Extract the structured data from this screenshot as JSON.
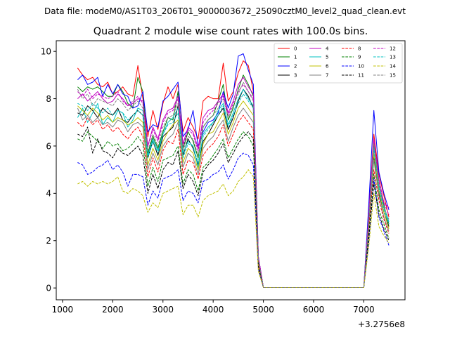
{
  "suptitle": "Data file: modeM0/AS1T03_206T01_9000003672_25090cztM0_level2_quad_clean.evt",
  "chart_data": {
    "type": "line",
    "title": "Quadrant 2 module wise count rates with 100.0s bins.",
    "xlabel": "",
    "ylabel": "",
    "x_offset_label": "+3.2756e8",
    "xlim": [
      875,
      7820
    ],
    "ylim": [
      -0.5,
      10.45
    ],
    "xticks": [
      1000,
      2000,
      3000,
      4000,
      5000,
      6000,
      7000
    ],
    "xtick_labels": [
      "1000",
      "2000",
      "3000",
      "4000",
      "5000",
      "6000",
      "7000"
    ],
    "yticks": [
      0,
      2,
      4,
      6,
      8,
      10
    ],
    "ytick_labels": [
      "0",
      "2",
      "4",
      "6",
      "8",
      "10"
    ],
    "legend_position": "upper right",
    "legend_columns": 4,
    "x": [
      1300,
      1400,
      1500,
      1600,
      1700,
      1800,
      1900,
      2000,
      2100,
      2200,
      2300,
      2400,
      2500,
      2600,
      2700,
      2800,
      2900,
      3000,
      3100,
      3200,
      3300,
      3400,
      3500,
      3600,
      3700,
      3800,
      3900,
      4000,
      4100,
      4200,
      4300,
      4400,
      4500,
      4600,
      4700,
      4800,
      4900,
      5000,
      5100,
      5200,
      5300,
      5400,
      5500,
      5600,
      5700,
      5800,
      5900,
      6000,
      6100,
      6200,
      6300,
      6400,
      6500,
      6600,
      6700,
      6800,
      6900,
      7000,
      7100,
      7200,
      7300,
      7400,
      7500
    ],
    "series": [
      {
        "name": "0",
        "color": "#ff0000",
        "dash": "solid",
        "values": [
          9.3,
          9.0,
          8.8,
          8.9,
          8.6,
          8.5,
          8.7,
          8.2,
          8.3,
          8.5,
          8.2,
          8.1,
          9.4,
          8.0,
          6.4,
          7.5,
          6.7,
          7.8,
          8.5,
          8.0,
          8.6,
          6.6,
          7.2,
          6.8,
          6.3,
          7.9,
          8.1,
          8.0,
          8.0,
          9.5,
          7.9,
          8.3,
          9.1,
          9.6,
          9.4,
          8.3,
          1.3,
          0.02,
          0.02,
          0.02,
          0.02,
          0.02,
          0.02,
          0.02,
          0.02,
          0.02,
          0.02,
          0.02,
          0.02,
          0.02,
          0.02,
          0.02,
          0.02,
          0.02,
          0.02,
          0.02,
          0.02,
          0.02,
          3.3,
          6.5,
          4.8,
          3.9,
          3.0
        ]
      },
      {
        "name": "1",
        "color": "#008000",
        "dash": "solid",
        "values": [
          8.5,
          8.3,
          8.5,
          8.4,
          8.5,
          8.3,
          8.1,
          8.1,
          8.6,
          8.3,
          7.8,
          7.6,
          8.9,
          8.3,
          5.7,
          6.4,
          5.9,
          6.6,
          7.2,
          7.1,
          8.3,
          5.9,
          6.6,
          6.2,
          5.5,
          6.8,
          7.1,
          7.3,
          7.9,
          8.6,
          7.1,
          7.6,
          8.4,
          9.0,
          8.6,
          8.1,
          1.2,
          0.02,
          0.02,
          0.02,
          0.02,
          0.02,
          0.02,
          0.02,
          0.02,
          0.02,
          0.02,
          0.02,
          0.02,
          0.02,
          0.02,
          0.02,
          0.02,
          0.02,
          0.02,
          0.02,
          0.02,
          0.02,
          3.0,
          6.1,
          4.3,
          3.5,
          2.7
        ]
      },
      {
        "name": "2",
        "color": "#0000ff",
        "dash": "solid",
        "values": [
          8.8,
          9.0,
          8.6,
          8.7,
          8.9,
          8.1,
          8.6,
          8.2,
          8.6,
          8.2,
          8.1,
          7.6,
          7.7,
          8.3,
          6.6,
          6.9,
          6.8,
          7.9,
          8.1,
          8.4,
          8.7,
          6.4,
          6.7,
          7.5,
          6.0,
          6.6,
          7.0,
          7.1,
          7.4,
          8.3,
          7.6,
          8.2,
          9.8,
          9.9,
          9.2,
          8.6,
          1.3,
          0.02,
          0.02,
          0.02,
          0.02,
          0.02,
          0.02,
          0.02,
          0.02,
          0.02,
          0.02,
          0.02,
          0.02,
          0.02,
          0.02,
          0.02,
          0.02,
          0.02,
          0.02,
          0.02,
          0.02,
          0.02,
          3.6,
          7.5,
          4.9,
          4.0,
          3.3
        ]
      },
      {
        "name": "3",
        "color": "#000000",
        "dash": "solid",
        "values": [
          7.4,
          7.3,
          7.7,
          7.5,
          7.2,
          7.6,
          7.4,
          7.3,
          7.6,
          7.1,
          7.0,
          7.3,
          7.5,
          7.3,
          5.5,
          6.2,
          5.6,
          6.4,
          6.6,
          6.8,
          7.7,
          5.6,
          6.3,
          5.9,
          5.2,
          6.2,
          6.5,
          6.9,
          7.3,
          7.6,
          6.7,
          7.2,
          7.9,
          8.4,
          8.1,
          7.6,
          1.2,
          0.02,
          0.02,
          0.02,
          0.02,
          0.02,
          0.02,
          0.02,
          0.02,
          0.02,
          0.02,
          0.02,
          0.02,
          0.02,
          0.02,
          0.02,
          0.02,
          0.02,
          0.02,
          0.02,
          0.02,
          0.02,
          2.9,
          5.5,
          4.0,
          3.2,
          2.6
        ]
      },
      {
        "name": "4",
        "color": "#c000c0",
        "dash": "solid",
        "values": [
          8.0,
          8.2,
          7.9,
          8.1,
          8.3,
          8.0,
          7.8,
          7.9,
          8.2,
          8.0,
          7.7,
          7.8,
          8.0,
          7.9,
          6.0,
          6.8,
          6.3,
          7.1,
          7.5,
          7.6,
          8.1,
          6.1,
          6.8,
          6.6,
          5.9,
          7.2,
          7.5,
          7.6,
          7.9,
          8.2,
          7.4,
          7.9,
          8.6,
          8.9,
          8.5,
          8.2,
          1.3,
          0.02,
          0.02,
          0.02,
          0.02,
          0.02,
          0.02,
          0.02,
          0.02,
          0.02,
          0.02,
          0.02,
          0.02,
          0.02,
          0.02,
          0.02,
          0.02,
          0.02,
          0.02,
          0.02,
          0.02,
          0.02,
          3.2,
          6.3,
          4.6,
          3.6,
          3.4
        ]
      },
      {
        "name": "5",
        "color": "#00c0c0",
        "dash": "solid",
        "values": [
          7.2,
          7.6,
          7.0,
          7.4,
          7.8,
          6.9,
          7.2,
          7.0,
          7.5,
          7.4,
          6.8,
          7.1,
          7.6,
          7.5,
          5.6,
          6.3,
          5.8,
          6.5,
          7.0,
          7.2,
          7.6,
          5.7,
          6.2,
          6.0,
          5.1,
          6.5,
          6.8,
          7.0,
          7.5,
          7.8,
          6.9,
          7.4,
          8.0,
          8.4,
          8.0,
          7.7,
          1.2,
          0.02,
          0.02,
          0.02,
          0.02,
          0.02,
          0.02,
          0.02,
          0.02,
          0.02,
          0.02,
          0.02,
          0.02,
          0.02,
          0.02,
          0.02,
          0.02,
          0.02,
          0.02,
          0.02,
          0.02,
          0.02,
          3.0,
          6.0,
          4.3,
          3.4,
          2.8
        ]
      },
      {
        "name": "6",
        "color": "#c0c000",
        "dash": "solid",
        "values": [
          7.7,
          7.5,
          7.3,
          7.6,
          7.4,
          7.1,
          7.3,
          7.0,
          7.2,
          7.1,
          6.9,
          7.0,
          7.2,
          7.0,
          5.2,
          5.9,
          5.4,
          6.2,
          6.6,
          6.9,
          7.1,
          5.3,
          5.9,
          5.7,
          5.0,
          6.1,
          6.5,
          6.6,
          7.0,
          7.4,
          6.5,
          7.0,
          7.6,
          7.9,
          7.6,
          7.3,
          1.1,
          0.02,
          0.02,
          0.02,
          0.02,
          0.02,
          0.02,
          0.02,
          0.02,
          0.02,
          0.02,
          0.02,
          0.02,
          0.02,
          0.02,
          0.02,
          0.02,
          0.02,
          0.02,
          0.02,
          0.02,
          0.02,
          2.8,
          5.7,
          4.1,
          3.2,
          2.5
        ]
      },
      {
        "name": "7",
        "color": "#808080",
        "dash": "solid",
        "values": [
          7.6,
          7.1,
          7.3,
          7.0,
          7.2,
          6.9,
          7.0,
          6.8,
          7.1,
          7.0,
          6.6,
          6.9,
          7.0,
          6.8,
          5.0,
          5.7,
          5.2,
          6.0,
          6.3,
          6.5,
          7.0,
          5.1,
          5.7,
          5.5,
          4.8,
          5.9,
          6.2,
          6.4,
          6.8,
          7.1,
          6.2,
          6.8,
          7.3,
          7.6,
          7.3,
          7.0,
          1.1,
          0.02,
          0.02,
          0.02,
          0.02,
          0.02,
          0.02,
          0.02,
          0.02,
          0.02,
          0.02,
          0.02,
          0.02,
          0.02,
          0.02,
          0.02,
          0.02,
          0.02,
          0.02,
          0.02,
          0.02,
          0.02,
          2.7,
          5.4,
          3.9,
          3.0,
          2.4
        ]
      },
      {
        "name": "8",
        "color": "#ff0000",
        "dash": "dashed",
        "values": [
          7.0,
          6.8,
          7.2,
          6.9,
          7.1,
          6.7,
          6.9,
          6.6,
          6.8,
          6.5,
          6.3,
          6.6,
          6.8,
          6.4,
          4.7,
          5.5,
          4.9,
          5.8,
          6.2,
          6.1,
          6.7,
          4.8,
          5.4,
          5.3,
          4.6,
          5.6,
          5.9,
          6.1,
          6.4,
          6.9,
          6.0,
          6.5,
          7.0,
          7.3,
          7.0,
          6.7,
          1.0,
          0.02,
          0.02,
          0.02,
          0.02,
          0.02,
          0.02,
          0.02,
          0.02,
          0.02,
          0.02,
          0.02,
          0.02,
          0.02,
          0.02,
          0.02,
          0.02,
          0.02,
          0.02,
          0.02,
          0.02,
          0.02,
          2.6,
          5.0,
          3.7,
          2.9,
          2.3
        ]
      },
      {
        "name": "9",
        "color": "#008000",
        "dash": "dashed",
        "values": [
          6.3,
          6.2,
          6.6,
          6.4,
          6.2,
          5.9,
          6.2,
          6.0,
          6.1,
          5.8,
          5.9,
          6.1,
          6.4,
          6.1,
          4.3,
          5.1,
          4.5,
          5.4,
          5.5,
          5.6,
          6.0,
          4.4,
          5.0,
          4.8,
          4.1,
          5.1,
          5.3,
          5.6,
          5.9,
          6.3,
          5.5,
          5.9,
          6.3,
          6.6,
          6.4,
          6.0,
          0.9,
          0.02,
          0.02,
          0.02,
          0.02,
          0.02,
          0.02,
          0.02,
          0.02,
          0.02,
          0.02,
          0.02,
          0.02,
          0.02,
          0.02,
          0.02,
          0.02,
          0.02,
          0.02,
          0.02,
          0.02,
          0.02,
          2.3,
          4.8,
          3.3,
          2.7,
          2.1
        ]
      },
      {
        "name": "10",
        "color": "#0000ff",
        "dash": "dashed",
        "values": [
          5.3,
          5.2,
          4.8,
          4.9,
          5.1,
          5.2,
          5.4,
          5.0,
          5.2,
          4.9,
          4.3,
          4.8,
          4.8,
          4.7,
          3.5,
          4.1,
          3.8,
          4.6,
          4.7,
          4.8,
          5.0,
          3.7,
          4.1,
          4.0,
          3.6,
          4.5,
          4.6,
          4.8,
          4.9,
          5.2,
          4.6,
          5.0,
          5.5,
          5.7,
          5.6,
          5.2,
          0.8,
          0.02,
          0.02,
          0.02,
          0.02,
          0.02,
          0.02,
          0.02,
          0.02,
          0.02,
          0.02,
          0.02,
          0.02,
          0.02,
          0.02,
          0.02,
          0.02,
          0.02,
          0.02,
          0.02,
          0.02,
          0.02,
          2.0,
          4.6,
          3.0,
          2.4,
          1.8
        ]
      },
      {
        "name": "11",
        "color": "#000000",
        "dash": "dashed",
        "values": [
          6.5,
          6.4,
          6.8,
          5.7,
          6.3,
          5.8,
          5.7,
          5.5,
          5.9,
          5.7,
          5.6,
          5.8,
          6.0,
          5.6,
          4.0,
          4.8,
          4.2,
          5.0,
          5.3,
          5.2,
          5.8,
          4.2,
          4.8,
          4.5,
          3.9,
          4.9,
          5.2,
          5.4,
          5.7,
          6.1,
          5.3,
          5.7,
          6.1,
          6.4,
          6.6,
          6.3,
          0.9,
          0.02,
          0.02,
          0.02,
          0.02,
          0.02,
          0.02,
          0.02,
          0.02,
          0.02,
          0.02,
          0.02,
          0.02,
          0.02,
          0.02,
          0.02,
          0.02,
          0.02,
          0.02,
          0.02,
          0.02,
          0.02,
          2.2,
          4.4,
          3.1,
          2.5,
          2.0
        ]
      },
      {
        "name": "12",
        "color": "#c000c0",
        "dash": "dashed",
        "values": [
          8.3,
          8.1,
          8.4,
          8.0,
          8.2,
          8.1,
          8.0,
          8.1,
          8.3,
          7.9,
          7.7,
          7.9,
          8.1,
          7.8,
          6.0,
          6.7,
          6.2,
          7.0,
          7.4,
          7.5,
          8.0,
          6.0,
          6.7,
          6.5,
          5.8,
          7.0,
          7.3,
          7.5,
          7.8,
          8.1,
          7.3,
          7.8,
          8.3,
          8.6,
          8.3,
          8.0,
          1.3,
          0.02,
          0.02,
          0.02,
          0.02,
          0.02,
          0.02,
          0.02,
          0.02,
          0.02,
          0.02,
          0.02,
          0.02,
          0.02,
          0.02,
          0.02,
          0.02,
          0.02,
          0.02,
          0.02,
          0.02,
          0.02,
          3.1,
          6.3,
          4.5,
          3.6,
          3.1
        ]
      },
      {
        "name": "13",
        "color": "#00c0c0",
        "dash": "dashed",
        "values": [
          7.8,
          7.7,
          7.5,
          7.8,
          7.6,
          7.4,
          7.6,
          7.3,
          7.5,
          7.4,
          7.1,
          7.3,
          7.5,
          7.3,
          5.5,
          6.2,
          5.7,
          6.5,
          6.9,
          7.0,
          7.4,
          5.5,
          6.1,
          6.0,
          5.3,
          6.4,
          6.7,
          7.0,
          7.3,
          7.7,
          6.8,
          7.3,
          7.8,
          8.2,
          7.9,
          7.6,
          1.2,
          0.02,
          0.02,
          0.02,
          0.02,
          0.02,
          0.02,
          0.02,
          0.02,
          0.02,
          0.02,
          0.02,
          0.02,
          0.02,
          0.02,
          0.02,
          0.02,
          0.02,
          0.02,
          0.02,
          0.02,
          0.02,
          2.9,
          5.9,
          4.2,
          3.3,
          2.7
        ]
      },
      {
        "name": "14",
        "color": "#c0c000",
        "dash": "dashed",
        "values": [
          4.4,
          4.5,
          4.3,
          4.5,
          4.4,
          4.5,
          4.4,
          4.5,
          4.7,
          4.1,
          4.0,
          4.2,
          4.1,
          3.9,
          3.2,
          3.6,
          3.4,
          4.0,
          4.1,
          4.2,
          4.3,
          3.1,
          3.5,
          3.5,
          3.0,
          3.7,
          3.9,
          4.0,
          4.1,
          4.4,
          3.9,
          4.1,
          4.5,
          4.7,
          5.0,
          4.7,
          0.7,
          0.02,
          0.02,
          0.02,
          0.02,
          0.02,
          0.02,
          0.02,
          0.02,
          0.02,
          0.02,
          0.02,
          0.02,
          0.02,
          0.02,
          0.02,
          0.02,
          0.02,
          0.02,
          0.02,
          0.02,
          0.02,
          1.8,
          4.0,
          2.6,
          2.2,
          1.9
        ]
      },
      {
        "name": "15",
        "color": "#808080",
        "dash": "dashed",
        "values": [
          8.4,
          8.0,
          8.2,
          7.7,
          8.0,
          7.9,
          7.8,
          7.7,
          8.0,
          7.8,
          7.5,
          7.7,
          7.9,
          7.6,
          5.8,
          6.5,
          6.0,
          6.8,
          7.2,
          7.3,
          7.8,
          5.8,
          6.4,
          6.3,
          5.6,
          6.8,
          7.1,
          7.3,
          7.6,
          8.0,
          7.2,
          7.7,
          8.2,
          8.7,
          8.3,
          7.9,
          1.2,
          0.02,
          0.02,
          0.02,
          0.02,
          0.02,
          0.02,
          0.02,
          0.02,
          0.02,
          0.02,
          0.02,
          0.02,
          0.02,
          0.02,
          0.02,
          0.02,
          0.02,
          0.02,
          0.02,
          0.02,
          0.02,
          3.0,
          6.1,
          4.4,
          3.4,
          2.9
        ]
      }
    ]
  }
}
